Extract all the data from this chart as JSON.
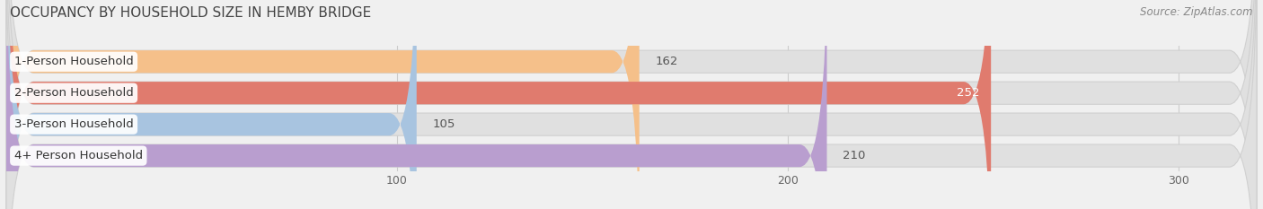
{
  "title": "OCCUPANCY BY HOUSEHOLD SIZE IN HEMBY BRIDGE",
  "source": "Source: ZipAtlas.com",
  "categories": [
    "1-Person Household",
    "2-Person Household",
    "3-Person Household",
    "4+ Person Household"
  ],
  "values": [
    162,
    252,
    105,
    210
  ],
  "bar_colors": [
    "#f5c08a",
    "#e07b6e",
    "#a8c4e0",
    "#b99ecf"
  ],
  "xlim_max": 320,
  "xticks": [
    100,
    200,
    300
  ],
  "background_color": "#f0f0f0",
  "track_color": "#e0e0e0",
  "track_edge_color": "#d0d0d0",
  "title_fontsize": 11,
  "source_fontsize": 8.5,
  "label_fontsize": 9.5,
  "value_fontsize": 9.5,
  "value_2_color": "#ffffff",
  "value_other_color": "#555555"
}
